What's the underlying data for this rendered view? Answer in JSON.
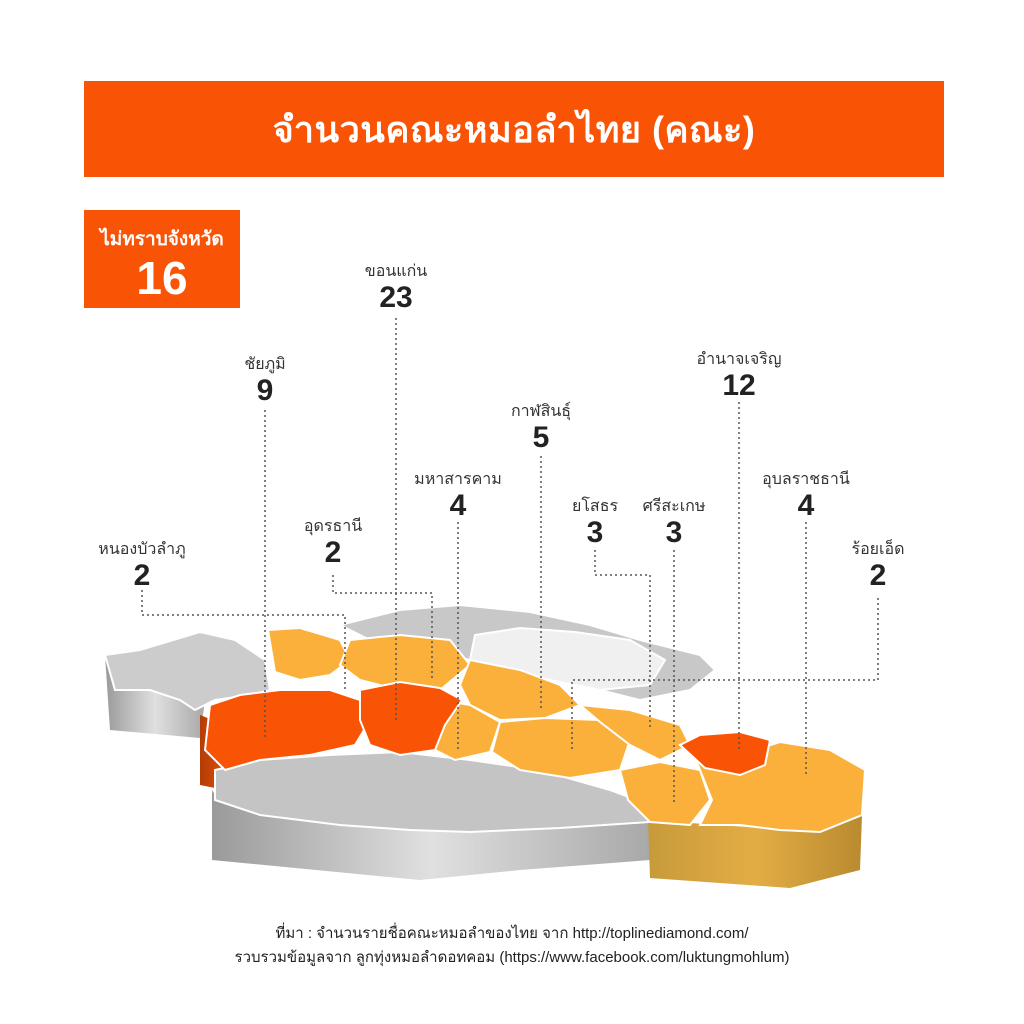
{
  "title": "จำนวนคณะหมอลำไทย (คณะ)",
  "unknown": {
    "label": "ไม่ทราบจังหวัด",
    "value": "16"
  },
  "colors": {
    "accent": "#f95306",
    "high": "#f95306",
    "mid": "#fbb03b",
    "none": "#c8c8c8",
    "light": "#eeeeee"
  },
  "provinces": [
    {
      "name": "หนองบัวลำภู",
      "value": "2"
    },
    {
      "name": "ชัยภูมิ",
      "value": "9"
    },
    {
      "name": "อุดรธานี",
      "value": "2"
    },
    {
      "name": "ขอนแก่น",
      "value": "23"
    },
    {
      "name": "มหาสารคาม",
      "value": "4"
    },
    {
      "name": "กาฬสินธุ์",
      "value": "5"
    },
    {
      "name": "ยโสธร",
      "value": "3"
    },
    {
      "name": "ศรีสะเกษ",
      "value": "3"
    },
    {
      "name": "อำนาจเจริญ",
      "value": "12"
    },
    {
      "name": "อุบลราชธานี",
      "value": "4"
    },
    {
      "name": "ร้อยเอ็ด",
      "value": "2"
    }
  ],
  "footer": {
    "line1": "ที่มา : จำนวนรายชื่อคณะหมอลำของไทย จาก http://toplinediamond.com/",
    "line2": "รวบรวมข้อมูลจาก ลูกทุ่งหมอลำดอทคอม (https://www.facebook.com/luktungmohlum)"
  }
}
